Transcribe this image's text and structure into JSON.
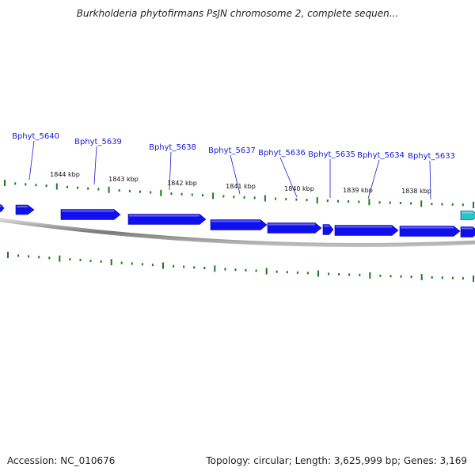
{
  "title": "Burkholderia phytofirmans PsJN chromosome 2, complete sequen...",
  "footer": {
    "accession_label": "Accession:",
    "accession": "NC_010676",
    "topology_label": "Topology:",
    "topology": "circular",
    "length_label": "Length:",
    "length": "3,625,999 bp",
    "genes_label": "Genes:",
    "genes": "3,169"
  },
  "genes": [
    {
      "label": "Bphyt_5640"
    },
    {
      "label": "Bphyt_5639"
    },
    {
      "label": "Bphyt_5638"
    },
    {
      "label": "Bphyt_5637"
    },
    {
      "label": "Bphyt_5636"
    },
    {
      "label": "Bphyt_5635"
    },
    {
      "label": "Bphyt_5634"
    },
    {
      "label": "Bphyt_5633"
    }
  ],
  "scale_labels": [
    "1844 kbp",
    "1843 kbp",
    "1842 kbp",
    "1841 kbp",
    "1840 kbp",
    "1839 kbp",
    "1838 kbp"
  ],
  "colors": {
    "gene": "#1010ee",
    "gene_highlight": "#20c8c8",
    "ruler": "#1d7a1d",
    "label": "#1a1adb",
    "backbone": "#8a8a8a"
  }
}
